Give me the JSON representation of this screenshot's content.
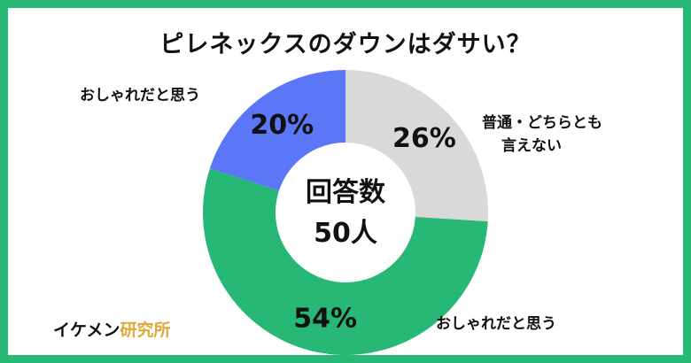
{
  "chart_data": {
    "type": "pie",
    "title": "ピレネックスのダウンはダサい？",
    "center_label": "回答数",
    "center_value": "50人",
    "slices": [
      {
        "label": "普通・どちらとも言えない",
        "label_lines": [
          "普通・どちらとも",
          "言えない"
        ],
        "value": 26,
        "display": "26%",
        "color": "#d9d9d9",
        "text_color": "#111111"
      },
      {
        "label": "おしゃれだと思う",
        "label_lines": [
          "おしゃれだと思う"
        ],
        "value": 54,
        "display": "54%",
        "color": "#27b876",
        "text_color": "#111111"
      },
      {
        "label": "おしゃれだと思う",
        "label_lines": [
          "おしゃれだと思う"
        ],
        "value": 20,
        "display": "20%",
        "color": "#5b76f7",
        "text_color": "#111111"
      }
    ],
    "start": "top",
    "direction": "clockwise",
    "legend": "none"
  },
  "brand": {
    "part1": "イケメン",
    "part2": "研究所"
  }
}
